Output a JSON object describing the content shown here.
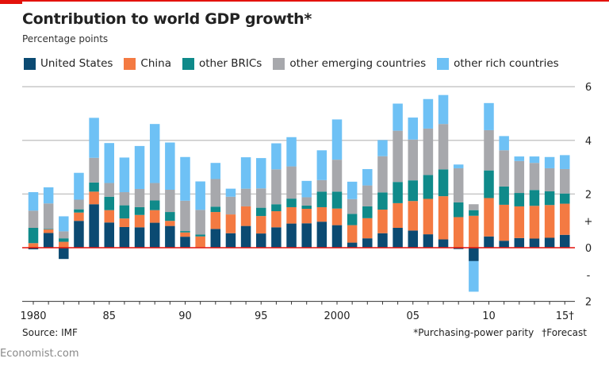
{
  "title": "Contribution to world GDP growth*",
  "subtitle": "Percentage points",
  "source": "Source: IMF",
  "footnotes": [
    "*Purchasing-power parity",
    "†Forecast"
  ],
  "brand": "Economist.com",
  "chart_data": {
    "type": "bar",
    "stacked": true,
    "title": "Contribution to world GDP growth*",
    "ylabel": "Percentage points",
    "ylim": [
      -2,
      6
    ],
    "y_ticks": [
      6,
      4,
      2,
      1,
      0,
      -1,
      -2
    ],
    "y_tick_labels": [
      "6",
      "4",
      "2",
      "+",
      "0",
      "-",
      "2"
    ],
    "grid": true,
    "legend": "top",
    "x": [
      1980,
      1981,
      1982,
      1983,
      1984,
      1985,
      1986,
      1987,
      1988,
      1989,
      1990,
      1991,
      1992,
      1993,
      1994,
      1995,
      1996,
      1997,
      1998,
      1999,
      2000,
      2001,
      2002,
      2003,
      2004,
      2005,
      2006,
      2007,
      2008,
      2009,
      2010,
      2011,
      2012,
      2013,
      2014,
      2015
    ],
    "x_tick_labels": [
      {
        "year": 1980,
        "label": "1980"
      },
      {
        "year": 1985,
        "label": "85"
      },
      {
        "year": 1990,
        "label": "90"
      },
      {
        "year": 1995,
        "label": "95"
      },
      {
        "year": 2000,
        "label": "2000"
      },
      {
        "year": 2005,
        "label": "05"
      },
      {
        "year": 2010,
        "label": "10"
      },
      {
        "year": 2015,
        "label": "15†"
      }
    ],
    "series": [
      {
        "name": "United States",
        "color": "#0b4a72",
        "values": [
          -0.06,
          0.55,
          -0.42,
          1.0,
          1.62,
          0.94,
          0.77,
          0.76,
          0.93,
          0.81,
          0.41,
          0.02,
          0.7,
          0.54,
          0.81,
          0.53,
          0.76,
          0.9,
          0.91,
          0.97,
          0.84,
          0.19,
          0.35,
          0.54,
          0.74,
          0.64,
          0.5,
          0.31,
          -0.05,
          -0.5,
          0.42,
          0.26,
          0.36,
          0.34,
          0.37,
          0.48
        ]
      },
      {
        "name": "China",
        "color": "#f47a42",
        "values": [
          0.17,
          0.13,
          0.22,
          0.31,
          0.47,
          0.46,
          0.32,
          0.46,
          0.47,
          0.19,
          0.16,
          0.4,
          0.63,
          0.7,
          0.73,
          0.65,
          0.6,
          0.61,
          0.54,
          0.54,
          0.62,
          0.65,
          0.75,
          0.88,
          0.92,
          1.1,
          1.32,
          1.61,
          1.14,
          1.19,
          1.43,
          1.34,
          1.18,
          1.22,
          1.22,
          1.16
        ]
      },
      {
        "name": "other BRICs",
        "color": "#0f8a8a",
        "values": [
          0.57,
          0.02,
          0.13,
          0.12,
          0.34,
          0.5,
          0.49,
          0.29,
          0.36,
          0.33,
          0.05,
          0.07,
          0.2,
          0.0,
          0.0,
          0.31,
          0.26,
          0.32,
          0.12,
          0.58,
          0.63,
          0.42,
          0.44,
          0.64,
          0.79,
          0.77,
          0.89,
          1.0,
          0.55,
          0.21,
          1.03,
          0.68,
          0.5,
          0.59,
          0.51,
          0.38
        ]
      },
      {
        "name": "other emerging countries",
        "color": "#a7a8ac",
        "values": [
          0.64,
          0.95,
          0.26,
          0.36,
          0.92,
          0.51,
          0.49,
          0.68,
          0.65,
          0.83,
          1.13,
          0.92,
          1.03,
          0.66,
          0.66,
          0.72,
          1.3,
          1.2,
          0.31,
          0.43,
          1.19,
          0.55,
          0.78,
          1.35,
          1.91,
          1.52,
          1.73,
          1.69,
          1.27,
          0.22,
          1.5,
          1.35,
          1.19,
          1.01,
          0.86,
          0.91
        ]
      },
      {
        "name": "other rich countries",
        "color": "#6ec1f5",
        "values": [
          0.69,
          0.6,
          0.56,
          1.0,
          1.49,
          1.49,
          1.29,
          1.6,
          2.2,
          1.76,
          1.63,
          1.06,
          0.6,
          0.3,
          1.17,
          1.13,
          0.97,
          1.09,
          0.61,
          1.11,
          1.5,
          0.65,
          0.61,
          0.6,
          1.01,
          0.82,
          1.1,
          1.08,
          0.14,
          -1.14,
          1.01,
          0.53,
          0.17,
          0.24,
          0.42,
          0.52
        ]
      }
    ]
  }
}
